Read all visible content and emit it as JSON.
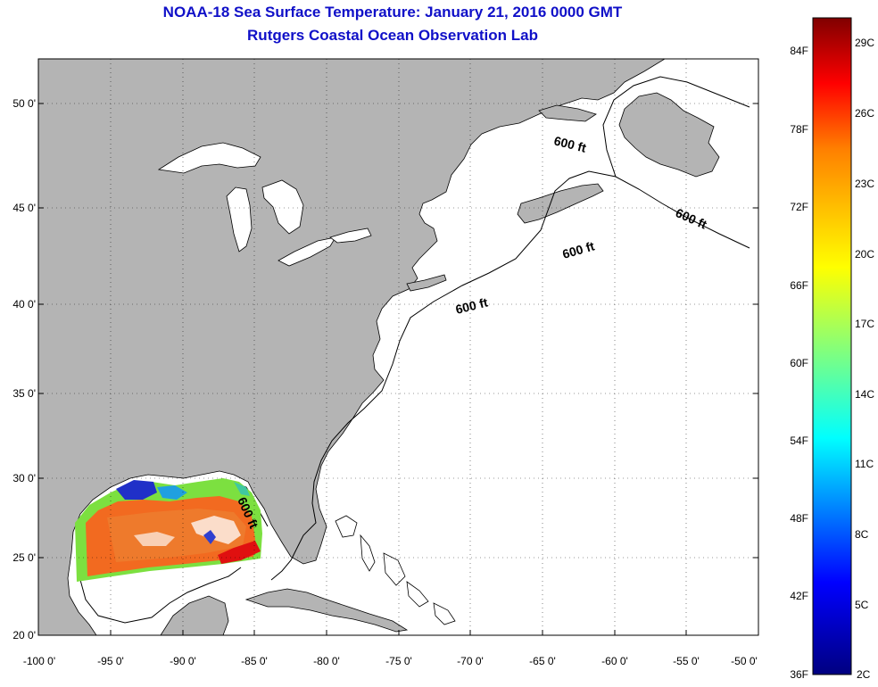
{
  "title": "NOAA-18 Sea Surface Temperature:  January 21, 2016 0000 GMT",
  "subtitle": "Rutgers Coastal Ocean Observation Lab",
  "map": {
    "lat_ticks": [
      "50 0'",
      "45 0'",
      "40 0'",
      "35 0'",
      "30 0'",
      "25 0'",
      "20 0'"
    ],
    "lon_ticks": [
      "-100 0'",
      "-95 0'",
      "-90 0'",
      "-85 0'",
      "-80 0'",
      "-75 0'",
      "-70 0'",
      "-65 0'",
      "-60 0'",
      "-55 0'",
      "-50 0'"
    ],
    "lat_range": [
      20,
      52.5
    ],
    "lon_range": [
      -100,
      -50
    ],
    "grid": true,
    "isobath_labels": [
      "600 ft",
      "600 ft",
      "600 ft",
      "600 ft",
      "600 ft"
    ],
    "land_color": "#b4b4b4",
    "ocean_color": "#ffffff"
  },
  "colorbar": {
    "fahrenheit_labels": [
      "84F",
      "78F",
      "72F",
      "66F",
      "60F",
      "54F",
      "48F",
      "42F",
      "36F"
    ],
    "celsius_labels": [
      "29C",
      "26C",
      "23C",
      "20C",
      "17C",
      "14C",
      "11C",
      "8C",
      "5C",
      "2C"
    ],
    "colors": [
      "#000080",
      "#0000ff",
      "#00ffff",
      "#ffff00",
      "#ff8000",
      "#ff0000",
      "#800000"
    ]
  }
}
